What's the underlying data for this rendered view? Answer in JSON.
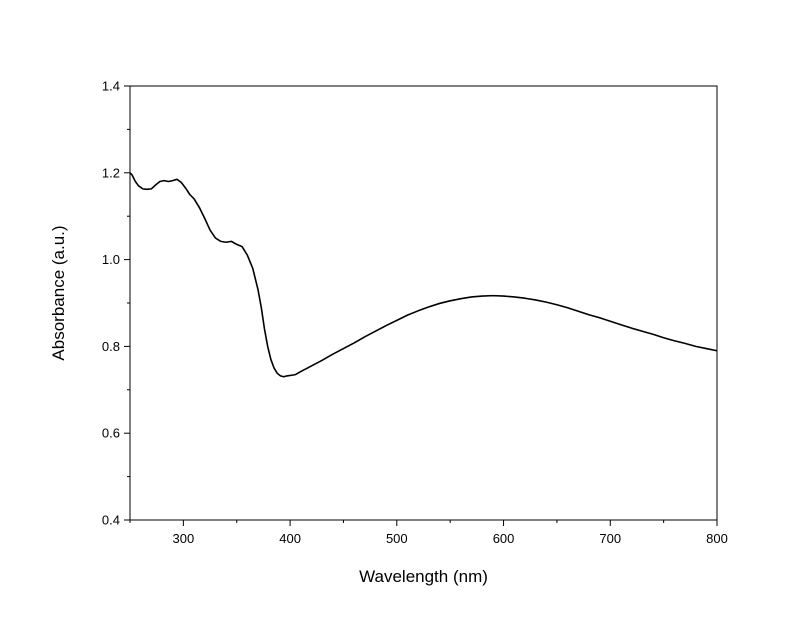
{
  "chart_data": {
    "type": "line",
    "title": "",
    "xlabel": "Wavelength (nm)",
    "ylabel": "Absorbance (a.u.)",
    "xlim": [
      250,
      800
    ],
    "ylim": [
      0.4,
      1.4
    ],
    "x_ticks": [
      300,
      400,
      500,
      600,
      700,
      800
    ],
    "y_ticks": [
      0.4,
      0.6,
      0.8,
      1.0,
      1.2,
      1.4
    ],
    "x_tick_labels": [
      "300",
      "400",
      "500",
      "600",
      "700",
      "800"
    ],
    "y_tick_labels": [
      "0.4",
      "0.6",
      "0.8",
      "1.0",
      "1.2",
      "1.4"
    ],
    "grid": false,
    "legend": "none",
    "series": [
      {
        "color": "#000000",
        "x": [
          250,
          252,
          255,
          258,
          262,
          266,
          270,
          274,
          278,
          282,
          286,
          290,
          294,
          298,
          302,
          306,
          310,
          315,
          320,
          325,
          330,
          335,
          340,
          345,
          350,
          355,
          360,
          365,
          370,
          373,
          376,
          379,
          382,
          385,
          388,
          391,
          394,
          397,
          400,
          405,
          410,
          420,
          430,
          440,
          450,
          460,
          470,
          480,
          490,
          500,
          510,
          520,
          530,
          540,
          550,
          560,
          570,
          580,
          590,
          600,
          610,
          620,
          630,
          640,
          650,
          660,
          670,
          680,
          690,
          700,
          710,
          720,
          730,
          740,
          750,
          760,
          770,
          780,
          790,
          800
        ],
        "y": [
          1.2,
          1.195,
          1.18,
          1.17,
          1.163,
          1.162,
          1.163,
          1.172,
          1.18,
          1.182,
          1.18,
          1.182,
          1.185,
          1.178,
          1.165,
          1.15,
          1.14,
          1.12,
          1.095,
          1.068,
          1.05,
          1.042,
          1.04,
          1.042,
          1.035,
          1.03,
          1.01,
          0.98,
          0.93,
          0.89,
          0.84,
          0.8,
          0.77,
          0.75,
          0.738,
          0.732,
          0.73,
          0.732,
          0.733,
          0.735,
          0.742,
          0.755,
          0.768,
          0.782,
          0.795,
          0.808,
          0.822,
          0.835,
          0.848,
          0.86,
          0.872,
          0.882,
          0.891,
          0.899,
          0.905,
          0.91,
          0.914,
          0.916,
          0.917,
          0.916,
          0.914,
          0.911,
          0.907,
          0.902,
          0.896,
          0.889,
          0.881,
          0.873,
          0.866,
          0.858,
          0.85,
          0.842,
          0.835,
          0.828,
          0.82,
          0.813,
          0.807,
          0.8,
          0.795,
          0.79
        ]
      }
    ]
  }
}
